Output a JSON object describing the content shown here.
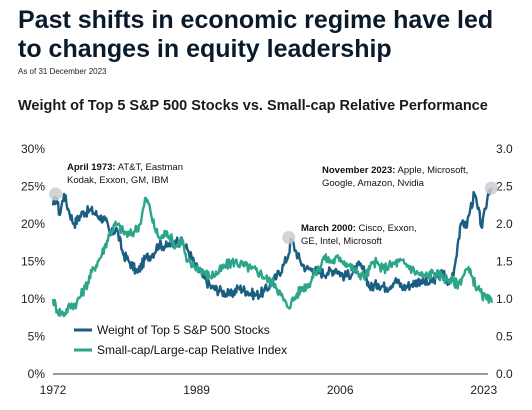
{
  "header": {
    "headline": "Past shifts in economic regime have led to changes in equity leadership",
    "as_of": "As of 31 December 2023",
    "chart_title": "Weight of Top 5 S&P 500 Stocks vs. Small-cap Relative Performance"
  },
  "colors": {
    "top5": "#1b5e82",
    "smallcap": "#2ca58a",
    "marker": "#c9cdd2"
  },
  "chart_data": {
    "type": "line",
    "title": "Weight of Top 5 S&P 500 Stocks vs. Small-cap Relative Performance",
    "x_ticks": [
      "1972",
      "1989",
      "2006",
      "2023"
    ],
    "xlim": [
      1972,
      2023.5
    ],
    "y_left": {
      "ticks": [
        "0%",
        "5%",
        "10%",
        "15%",
        "20%",
        "25%",
        "30%"
      ],
      "ylim": [
        0,
        30
      ]
    },
    "y_right": {
      "ticks": [
        "0.0",
        "0.5",
        "1.0",
        "1.5",
        "2.0",
        "2.5",
        "3.0"
      ],
      "ylim": [
        0,
        3
      ]
    },
    "legend": {
      "position": "lower-left",
      "entries": [
        "Weight of Top 5 S&P 500 Stocks",
        "Small-cap/Large-cap Relative Index"
      ]
    },
    "series": [
      {
        "name": "Weight of Top 5 S&P 500 Stocks",
        "axis": "left",
        "x": [
          1972.0,
          1972.4,
          1972.8,
          1973.3,
          1973.8,
          1974.5,
          1975.5,
          1976.5,
          1977.5,
          1978.2,
          1978.8,
          1979.5,
          1980.3,
          1981.0,
          1982.0,
          1983.0,
          1983.8,
          1984.5,
          1985.5,
          1986.5,
          1987.3,
          1988.0,
          1988.8,
          1989.7,
          1990.8,
          1992.0,
          1993.0,
          1994.0,
          1995.0,
          1996.0,
          1997.0,
          1997.8,
          1998.5,
          1999.3,
          1999.9,
          2000.2,
          2000.7,
          2001.3,
          2002.0,
          2002.7,
          2003.5,
          2004.5,
          2005.5,
          2006.5,
          2007.5,
          2008.3,
          2008.9,
          2009.5,
          2010.5,
          2011.5,
          2012.5,
          2013.5,
          2014.5,
          2015.5,
          2016.5,
          2017.5,
          2018.2,
          2018.9,
          2019.5,
          2020.0,
          2020.5,
          2020.9,
          2021.4,
          2021.9,
          2022.3,
          2022.8,
          2023.2,
          2023.6,
          2023.95
        ],
        "values": [
          22.5,
          23.5,
          21.2,
          24.0,
          22.0,
          20.0,
          21.5,
          21.8,
          21.0,
          20.5,
          18.5,
          19.5,
          16.0,
          15.0,
          13.5,
          15.5,
          16.0,
          17.3,
          17.0,
          17.8,
          17.5,
          16.5,
          14.5,
          13.0,
          11.5,
          11.0,
          10.5,
          11.5,
          11.0,
          10.5,
          11.0,
          12.0,
          13.0,
          14.5,
          16.0,
          18.0,
          16.5,
          15.0,
          14.0,
          14.0,
          13.5,
          13.5,
          14.0,
          13.0,
          13.5,
          14.5,
          13.5,
          11.5,
          12.0,
          11.5,
          12.5,
          11.5,
          12.0,
          12.5,
          12.0,
          13.0,
          13.5,
          12.0,
          14.0,
          18.0,
          20.5,
          19.5,
          22.0,
          24.0,
          22.0,
          19.5,
          22.0,
          24.5,
          24.8
        ]
      },
      {
        "name": "Small-cap/Large-cap Relative Index",
        "axis": "right",
        "x": [
          1972.0,
          1972.5,
          1973.2,
          1974.0,
          1974.8,
          1975.8,
          1976.8,
          1977.8,
          1978.8,
          1979.5,
          1980.3,
          1981.0,
          1981.6,
          1982.3,
          1983.0,
          1983.5,
          1984.0,
          1984.7,
          1985.5,
          1986.5,
          1987.3,
          1987.8,
          1988.5,
          1989.5,
          1990.5,
          1991.5,
          1992.5,
          1993.5,
          1994.5,
          1995.5,
          1996.5,
          1997.5,
          1998.3,
          1999.0,
          1999.7,
          2000.2,
          2000.8,
          2001.5,
          2002.3,
          2003.0,
          2003.5,
          2004.0,
          2005.0,
          2006.0,
          2007.0,
          2008.0,
          2009.0,
          2010.0,
          2011.0,
          2012.0,
          2013.0,
          2014.0,
          2015.0,
          2016.0,
          2017.0,
          2018.0,
          2019.0,
          2020.0,
          2020.5,
          2021.0,
          2021.6,
          2022.2,
          2022.8,
          2023.3,
          2023.95
        ],
        "values": [
          1.0,
          0.85,
          0.8,
          0.9,
          0.95,
          1.15,
          1.4,
          1.6,
          1.9,
          2.0,
          1.9,
          1.85,
          1.9,
          2.0,
          2.35,
          2.2,
          1.95,
          1.8,
          1.9,
          1.7,
          1.8,
          1.5,
          1.45,
          1.4,
          1.3,
          1.35,
          1.45,
          1.5,
          1.45,
          1.4,
          1.35,
          1.25,
          1.2,
          1.05,
          0.9,
          0.95,
          1.05,
          1.15,
          1.2,
          1.35,
          1.4,
          1.55,
          1.5,
          1.55,
          1.45,
          1.35,
          1.3,
          1.5,
          1.4,
          1.45,
          1.5,
          1.45,
          1.35,
          1.3,
          1.35,
          1.3,
          1.25,
          1.2,
          1.3,
          1.4,
          1.3,
          1.15,
          1.05,
          1.0,
          0.95
        ]
      }
    ],
    "markers": [
      {
        "x": 1972.3,
        "y": 24.0
      },
      {
        "x": 1999.9,
        "y": 18.2
      },
      {
        "x": 2023.9,
        "y": 24.8
      }
    ],
    "annotations": [
      {
        "bold": "April 1973:",
        "lines": [
          " AT&T, Eastman",
          "Kodak, Exxon, GM, IBM"
        ]
      },
      {
        "bold": "March 2000:",
        "lines": [
          " Cisco, Exxon,",
          "GE, Intel, Microsoft"
        ]
      },
      {
        "bold": "November 2023:",
        "lines": [
          " Apple, Microsoft,",
          "Google, Amazon, Nvidia"
        ]
      }
    ]
  }
}
